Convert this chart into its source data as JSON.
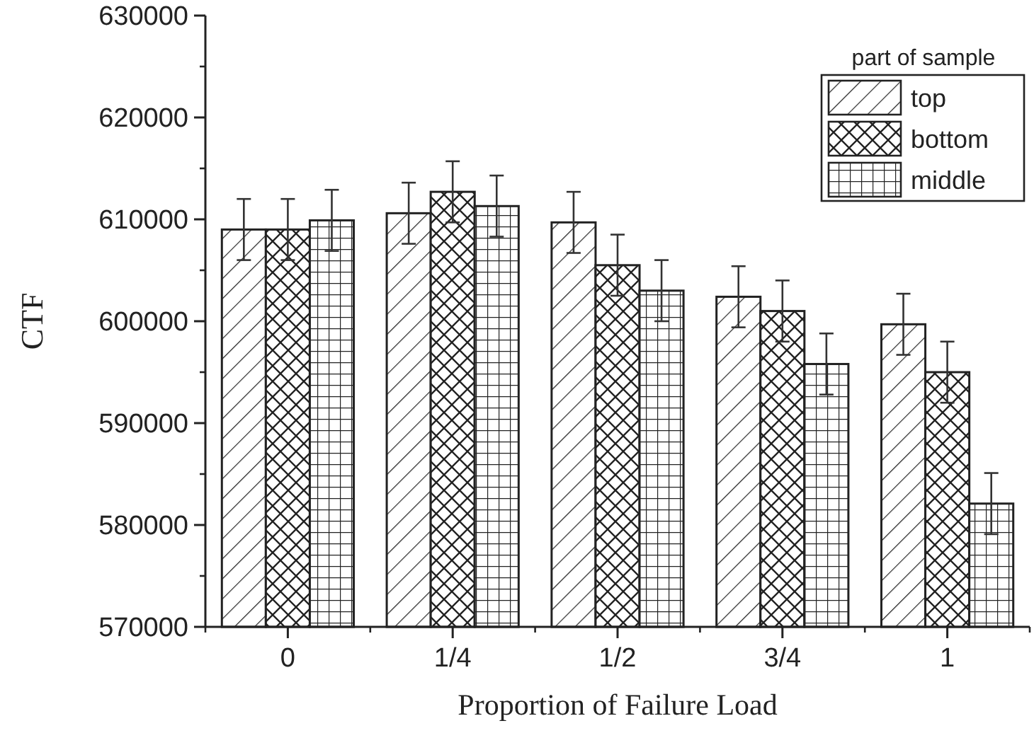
{
  "chart_data": {
    "type": "bar",
    "xlabel": "Proportion of Failure Load",
    "ylabel": "CTF",
    "legend_title": "part of sample",
    "legend": "top right",
    "categories": [
      "0",
      "1/4",
      "1/2",
      "3/4",
      "1"
    ],
    "series": [
      {
        "name": "top",
        "color": "#ffffff",
        "values": [
          609000,
          610600,
          609700,
          602400,
          599700
        ],
        "errors": [
          3000,
          3000,
          3000,
          3000,
          3000
        ]
      },
      {
        "name": "bottom",
        "color": "#ffffff",
        "values": [
          609000,
          612700,
          605500,
          601000,
          595000
        ],
        "errors": [
          3000,
          3000,
          3000,
          3000,
          3000
        ]
      },
      {
        "name": "middle",
        "color": "#ffffff",
        "values": [
          609900,
          611300,
          603000,
          595800,
          582100
        ],
        "errors": [
          3000,
          3000,
          3000,
          3000,
          3000
        ]
      }
    ],
    "ylim": [
      570000,
      630000
    ],
    "yticks": [
      570000,
      580000,
      590000,
      600000,
      610000,
      620000,
      630000
    ]
  }
}
